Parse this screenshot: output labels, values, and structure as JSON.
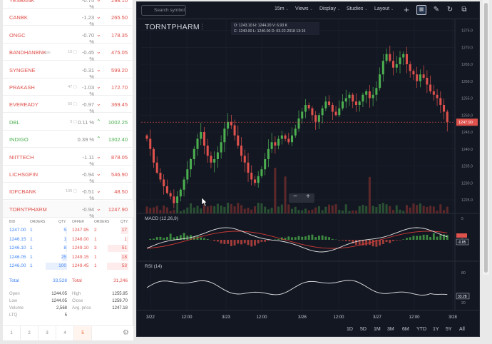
{
  "watchlist": [
    {
      "name": "YESBANK",
      "holdings": "",
      "change": "-0.75 %",
      "price": "298.10",
      "dir": "down",
      "color": "#df514c"
    },
    {
      "name": "CANBK",
      "holdings": "",
      "change": "-1.23 %",
      "price": "265.50",
      "dir": "down",
      "color": "#df514c"
    },
    {
      "name": "ONGC",
      "holdings": "",
      "change": "-0.70 %",
      "price": "178.35",
      "dir": "down",
      "color": "#df514c"
    },
    {
      "name": "BANDHANBNK",
      "tag": "BSE",
      "holdings": "10",
      "change": "-0.45 %",
      "price": "475.05",
      "dir": "down",
      "color": "#df514c"
    },
    {
      "name": "SYNGENE",
      "holdings": "",
      "change": "-0.31 %",
      "price": "599.20",
      "dir": "down",
      "color": "#df514c"
    },
    {
      "name": "PRAKASH",
      "holdings": "47",
      "change": "-1.03 %",
      "price": "172.70",
      "dir": "down",
      "color": "#df514c"
    },
    {
      "name": "EVEREADY",
      "holdings": "50",
      "change": "-0.97 %",
      "price": "369.45",
      "dir": "down",
      "color": "#df514c"
    },
    {
      "name": "DBL",
      "holdings": "5",
      "change": "0.11 %",
      "price": "1002.25",
      "dir": "up",
      "color": "#4caf50"
    },
    {
      "name": "INDIGO",
      "holdings": "",
      "change": "0.39 %",
      "price": "1302.40",
      "dir": "up",
      "color": "#4caf50"
    },
    {
      "name": "NIITTECH",
      "holdings": "",
      "change": "-1.11 %",
      "price": "878.05",
      "dir": "down",
      "color": "#df514c"
    },
    {
      "name": "LICHSGFIN",
      "holdings": "",
      "change": "-0.94 %",
      "price": "546.90",
      "dir": "down",
      "color": "#df514c"
    },
    {
      "name": "IDFCBANK",
      "holdings": "100",
      "change": "-0.51 %",
      "price": "48.50",
      "dir": "down",
      "color": "#df514c"
    },
    {
      "name": "TORNTPHARM",
      "holdings": "",
      "change": "-0.94 %",
      "price": "1247.90",
      "dir": "down",
      "color": "#df514c"
    }
  ],
  "market_depth": {
    "headers": {
      "bid": "BID",
      "orders": "ORDERS",
      "qty": "QTY.",
      "offer": "OFFER",
      "orders2": "ORDERS",
      "qty2": "QTY."
    },
    "bids": [
      {
        "price": "1247.00",
        "orders": "1",
        "qty": "5"
      },
      {
        "price": "1246.15",
        "orders": "1",
        "qty": "1"
      },
      {
        "price": "1246.10",
        "orders": "1",
        "qty": "8"
      },
      {
        "price": "1246.05",
        "orders": "1",
        "qty": "25"
      },
      {
        "price": "1246.00",
        "orders": "1",
        "qty": "100"
      }
    ],
    "offers": [
      {
        "price": "1247.95",
        "orders": "2",
        "qty": "17"
      },
      {
        "price": "1248.00",
        "orders": "1",
        "qty": "1"
      },
      {
        "price": "1249.10",
        "orders": "3",
        "qty": "51"
      },
      {
        "price": "1249.15",
        "orders": "1",
        "qty": "18"
      },
      {
        "price": "1249.45",
        "orders": "1",
        "qty": "53"
      }
    ],
    "total_label": "Total",
    "bid_total": "33,528",
    "offer_total": "31,246"
  },
  "stats": {
    "open_label": "Open",
    "open": "1244.05",
    "high_label": "High",
    "high": "1255.95",
    "low_label": "Low",
    "low": "1244.05",
    "close_label": "Close",
    "close": "1259.70",
    "volume_label": "Volume",
    "volume": "2,568",
    "avg_label": "Avg. price",
    "avg": "1247.18",
    "ltq_label": "LTQ",
    "ltq": "5"
  },
  "pages": [
    "1",
    "2",
    "3",
    "4",
    "5"
  ],
  "active_page": "5",
  "toolbar": {
    "search_placeholder": "Search symbol",
    "interval": "15m",
    "views": "Views",
    "display": "Display",
    "studies": "Studies",
    "layout": "Layout"
  },
  "chart_header": {
    "symbol": "TORNTPHARM",
    "ohlc_line1": "O: 1243.10   H: 1244.20   V: 6.93 K",
    "ohlc_line2": "C: 1240.00   L: 1240.00   D: 03-22-2018 13:15"
  },
  "indicators": {
    "macd_label": "MACD (12,26,9)",
    "rsi_label": "RSI (14)"
  },
  "range_buttons": [
    "1D",
    "5D",
    "1M",
    "3M",
    "6M",
    "YTD",
    "1Y",
    "5Y",
    "All"
  ],
  "colors": {
    "up": "#4caf50",
    "down": "#df514c",
    "accent": "#ff5722",
    "bid": "#4184f3",
    "chart_bg": "#131722"
  },
  "chart_data": {
    "type": "candlestick",
    "symbol": "TORNTPHARM",
    "interval": "15m",
    "x_labels": [
      "3/22",
      "12:00",
      "3/23",
      "12:00",
      "3/26",
      "12:00",
      "3/27",
      "12:00",
      "3/28"
    ],
    "y_ticks": [
      1275,
      1270,
      1265,
      1260,
      1255,
      1250,
      1245,
      1240,
      1235,
      1230,
      1225
    ],
    "ylim": [
      1221,
      1277
    ],
    "last_price": "1247.90",
    "closes": [
      1243,
      1240,
      1236,
      1233,
      1231,
      1229,
      1227,
      1226,
      1224,
      1226,
      1228,
      1231,
      1234,
      1237,
      1240,
      1243,
      1245,
      1241,
      1238,
      1236,
      1237,
      1239,
      1242,
      1246,
      1248,
      1247,
      1244,
      1241,
      1238,
      1236,
      1233,
      1231,
      1230,
      1232,
      1234,
      1237,
      1240,
      1242,
      1241,
      1243,
      1244,
      1243,
      1242,
      1244,
      1246,
      1249,
      1251,
      1253,
      1252,
      1250,
      1248,
      1250,
      1252,
      1254,
      1253,
      1251,
      1250,
      1252,
      1254,
      1255,
      1256,
      1254,
      1253,
      1254,
      1256,
      1257,
      1255,
      1256,
      1258,
      1262,
      1266,
      1268,
      1266,
      1264,
      1265,
      1267,
      1268,
      1265,
      1263,
      1262,
      1260,
      1262,
      1261,
      1259,
      1257,
      1256,
      1255,
      1253,
      1251,
      1247.9
    ],
    "macd": {
      "label": "MACD (12,26,9)",
      "ticks": [
        5,
        0
      ],
      "last_value": "-0.85"
    },
    "rsi": {
      "label": "RSI (14)",
      "ticks": [
        80,
        20
      ],
      "last_value": "33.28"
    }
  }
}
